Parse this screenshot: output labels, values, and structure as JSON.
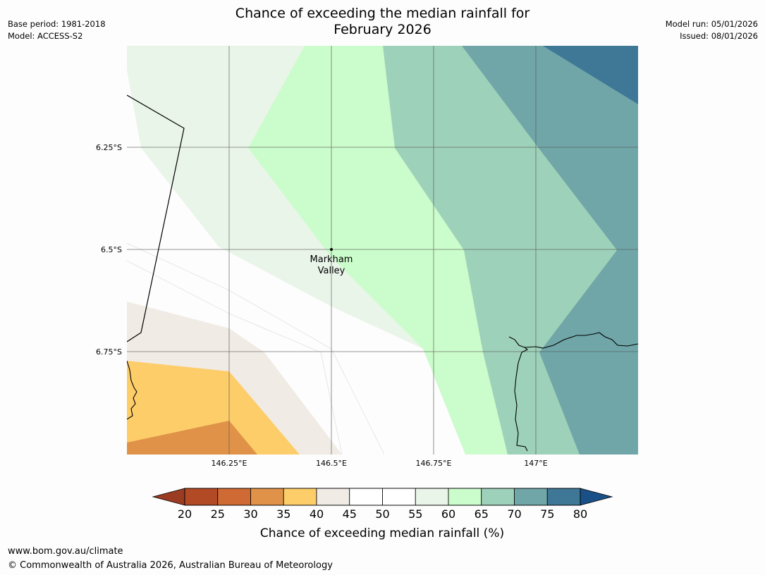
{
  "header": {
    "title_line1": "Chance of exceeding the median rainfall for",
    "title_line2": "February 2026",
    "base_period": "Base period: 1981-2018",
    "model": "Model: ACCESS-S2",
    "model_run": "Model run: 05/01/2026",
    "issued": "Issued: 08/01/2026"
  },
  "map": {
    "lat_labels": [
      "6.25°S",
      "6.5°S",
      "6.75°S"
    ],
    "lon_labels": [
      "146.25°E",
      "146.5°E",
      "146.75°E",
      "147°E"
    ],
    "place": {
      "name_line1": "Markham",
      "name_line2": "Valley"
    },
    "colors": {
      "c20_25": "#b24a26",
      "c25_30": "#cf6a34",
      "c30_35": "#e09348",
      "c35_40": "#fdcd6a",
      "c40_45": "#f0ebe5",
      "c45_55": "#fdfdfd",
      "c55_60": "#eaf5ea",
      "c60_65": "#cbfccb",
      "c65_70": "#9ed1b9",
      "c70_75": "#70a6a8",
      "c75_80": "#3f7797",
      "grid": "#555555",
      "coast": "#000000"
    }
  },
  "colorbar": {
    "title": "Chance of exceeding median rainfall (%)",
    "ticks": [
      "20",
      "25",
      "30",
      "35",
      "40",
      "45",
      "50",
      "55",
      "60",
      "65",
      "70",
      "75",
      "80"
    ],
    "low_extend_color": "#9a3b22",
    "high_extend_color": "#1a5088",
    "segment_colors": [
      "#b24a26",
      "#cf6a34",
      "#e09348",
      "#fdcd6a",
      "#f0ebe5",
      "#ffffff",
      "#ffffff",
      "#eaf5ea",
      "#cbfccb",
      "#9ed1b9",
      "#70a6a8",
      "#3f7797"
    ]
  },
  "footer": {
    "url": "www.bom.gov.au/climate",
    "copyright": "© Commonwealth of Australia 2026, Australian Bureau of Meteorology"
  }
}
